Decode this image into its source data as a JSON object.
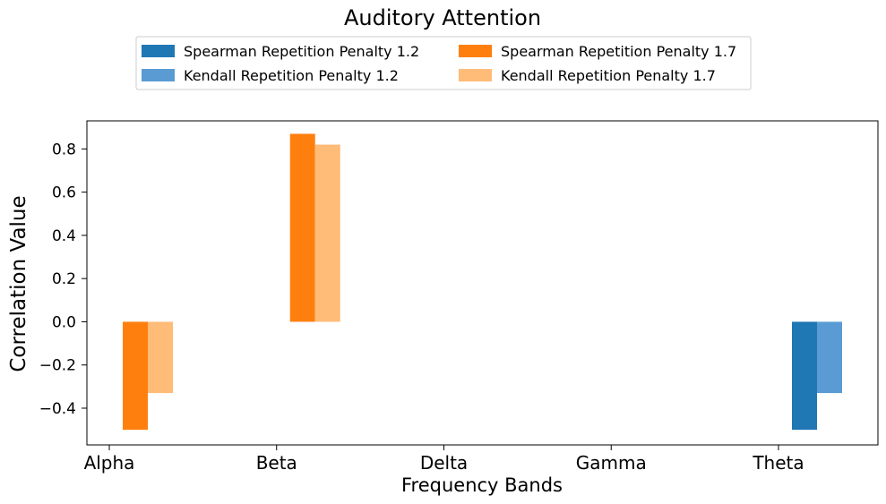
{
  "chart_data": {
    "type": "bar",
    "title": "Auditory Attention",
    "xlabel": "Frequency Bands",
    "ylabel": "Correlation Value",
    "categories": [
      "Alpha",
      "Beta",
      "Delta",
      "Gamma",
      "Theta"
    ],
    "ylim": [
      -0.57,
      0.93
    ],
    "yticks": [
      -0.4,
      -0.2,
      0.0,
      0.2,
      0.4,
      0.6,
      0.8
    ],
    "ytick_labels": [
      "−0.4",
      "−0.2",
      "0.0",
      "0.2",
      "0.4",
      "0.6",
      "0.8"
    ],
    "grid": false,
    "legend_position": "top-center",
    "series": [
      {
        "name": "Spearman Repetition Penalty 1.2",
        "color": "#1f77b4",
        "values": [
          null,
          null,
          null,
          null,
          -0.5
        ]
      },
      {
        "name": "Kendall Repetition Penalty 1.2",
        "color": "#5a9bd4",
        "values": [
          null,
          null,
          null,
          null,
          -0.33
        ]
      },
      {
        "name": "Spearman Repetition Penalty 1.7",
        "color": "#ff7f0e",
        "values": [
          -0.5,
          0.87,
          null,
          null,
          null
        ]
      },
      {
        "name": "Kendall Repetition Penalty 1.7",
        "color": "#ffbb78",
        "values": [
          -0.33,
          0.82,
          null,
          null,
          null
        ]
      }
    ]
  }
}
